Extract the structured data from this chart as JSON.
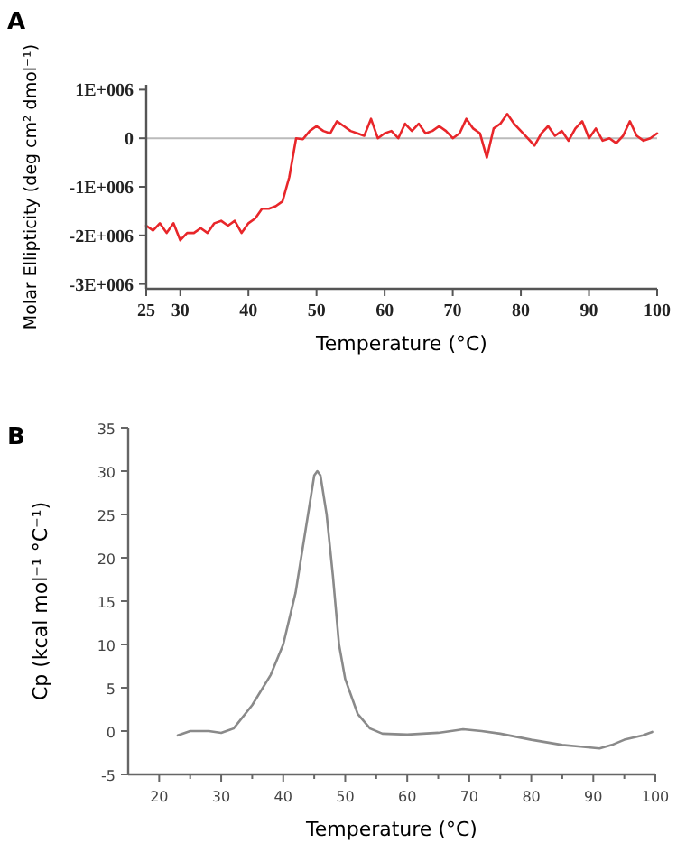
{
  "chart_data": [
    {
      "type": "line",
      "title": "A",
      "xlabel": "Temperature (°C)",
      "ylabel": "Molar Ellipticity (deg cm² dmol⁻¹)",
      "xlim": [
        25,
        100
      ],
      "xticks": [
        25,
        30,
        40,
        50,
        60,
        70,
        80,
        90,
        100
      ],
      "ylim": [
        -3100000,
        1100000
      ],
      "yticks": [
        {
          "value": 1000000,
          "label": "1E+006"
        },
        0,
        {
          "value": -1000000,
          "label": "-1E+006"
        },
        {
          "value": -2000000,
          "label": "-2E+006"
        },
        {
          "value": -3000000,
          "label": "-3E+006"
        }
      ],
      "ref_lines": [
        {
          "axis": "y",
          "value": 0,
          "color": "#bbbbbb"
        }
      ],
      "series": [
        {
          "color": "#e8262a",
          "x": [
            25,
            26,
            27,
            28,
            29,
            30,
            31,
            32,
            33,
            34,
            35,
            36,
            37,
            38,
            39,
            40,
            41,
            42,
            43,
            44,
            45,
            46,
            47,
            48,
            49,
            50,
            51,
            52,
            53,
            54,
            55,
            56,
            57,
            58,
            59,
            60,
            61,
            62,
            63,
            64,
            65,
            66,
            67,
            68,
            69,
            70,
            71,
            72,
            73,
            74,
            75,
            76,
            77,
            78,
            79,
            80,
            81,
            82,
            83,
            84,
            85,
            86,
            87,
            88,
            89,
            90,
            91,
            92,
            93,
            94,
            95,
            96,
            97,
            98,
            99,
            100
          ],
          "values": [
            -1800000,
            -1900000,
            -1750000,
            -1950000,
            -1750000,
            -2100000,
            -1950000,
            -1950000,
            -1850000,
            -1950000,
            -1750000,
            -1700000,
            -1800000,
            -1700000,
            -1950000,
            -1750000,
            -1650000,
            -1450000,
            -1450000,
            -1400000,
            -1300000,
            -800000,
            0,
            -20000,
            150000,
            250000,
            150000,
            100000,
            350000,
            250000,
            150000,
            100000,
            50000,
            400000,
            0,
            100000,
            150000,
            0,
            300000,
            150000,
            300000,
            100000,
            150000,
            250000,
            150000,
            0,
            100000,
            400000,
            200000,
            100000,
            -400000,
            200000,
            300000,
            500000,
            300000,
            150000,
            0,
            -150000,
            100000,
            250000,
            50000,
            150000,
            -50000,
            200000,
            350000,
            0,
            200000,
            -50000,
            0,
            -100000,
            50000,
            350000,
            50000,
            -50000,
            0,
            100000
          ]
        }
      ]
    },
    {
      "type": "line",
      "title": "B",
      "xlabel": "Temperature (°C)",
      "ylabel": "Cp (kcal mol⁻¹ °C⁻¹)",
      "xlim": [
        15,
        100
      ],
      "xticks": [
        20,
        {
          "value": 25,
          "label": null
        },
        30,
        {
          "value": 35,
          "label": null
        },
        40,
        {
          "value": 45,
          "label": null
        },
        50,
        {
          "value": 55,
          "label": null
        },
        60,
        {
          "value": 65,
          "label": null
        },
        70,
        {
          "value": 75,
          "label": null
        },
        80,
        {
          "value": 85,
          "label": null
        },
        90,
        {
          "value": 95,
          "label": null
        },
        100
      ],
      "ylim": [
        -5,
        35
      ],
      "yticks": [
        -5,
        0,
        5,
        10,
        15,
        20,
        25,
        30,
        35
      ],
      "series": [
        {
          "color": "#8a8a8a",
          "x": [
            23,
            25,
            28,
            30,
            32,
            35,
            38,
            40,
            42,
            44,
            45,
            45.5,
            46,
            47,
            48,
            49,
            50,
            52,
            54,
            56,
            60,
            65,
            69,
            72,
            75,
            80,
            85,
            88,
            91,
            93,
            95,
            98,
            99.5
          ],
          "values": [
            -0.5,
            0,
            0,
            -0.2,
            0.3,
            3,
            6.5,
            10,
            16,
            25,
            29.5,
            30,
            29.5,
            25,
            18,
            10,
            6,
            2,
            0.3,
            -0.3,
            -0.4,
            -0.2,
            0.2,
            0,
            -0.3,
            -1,
            -1.6,
            -1.8,
            -2,
            -1.6,
            -1,
            -0.5,
            -0.1
          ]
        }
      ]
    }
  ]
}
